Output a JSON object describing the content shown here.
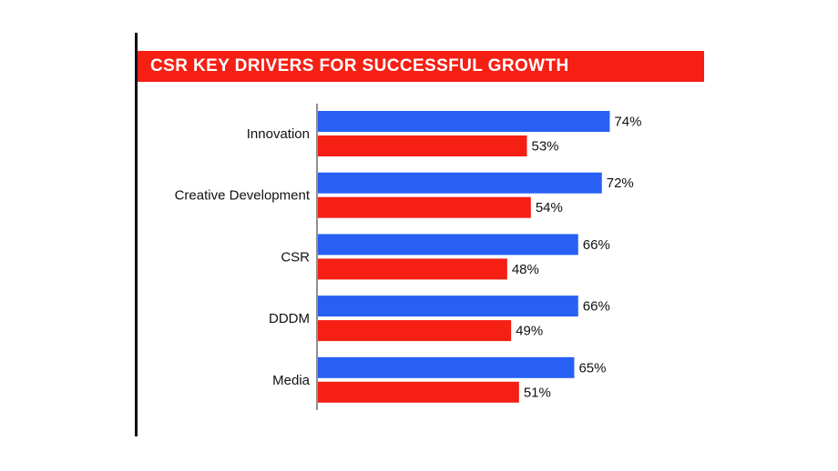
{
  "header": {
    "title": "CSR KEY DRIVERS FOR SUCCESSFUL GROWTH",
    "bar_color": "#f51f14"
  },
  "chart_data": {
    "type": "bar",
    "orientation": "horizontal",
    "title": "CSR KEY DRIVERS FOR SUCCESSFUL GROWTH",
    "categories": [
      "Innovation",
      "Creative Development",
      "CSR",
      "DDDM",
      "Media"
    ],
    "series": [
      {
        "color": "#2860f4",
        "values": [
          74,
          72,
          66,
          66,
          65
        ]
      },
      {
        "color": "#f51f14",
        "values": [
          53,
          54,
          48,
          49,
          51
        ]
      }
    ],
    "value_labels": [
      [
        "74%",
        "72%",
        "66%",
        "66%",
        "65%"
      ],
      [
        "53%",
        "54%",
        "48%",
        "49%",
        "51%"
      ]
    ],
    "xlim": [
      0,
      100
    ],
    "grid": false,
    "legend": "none"
  }
}
